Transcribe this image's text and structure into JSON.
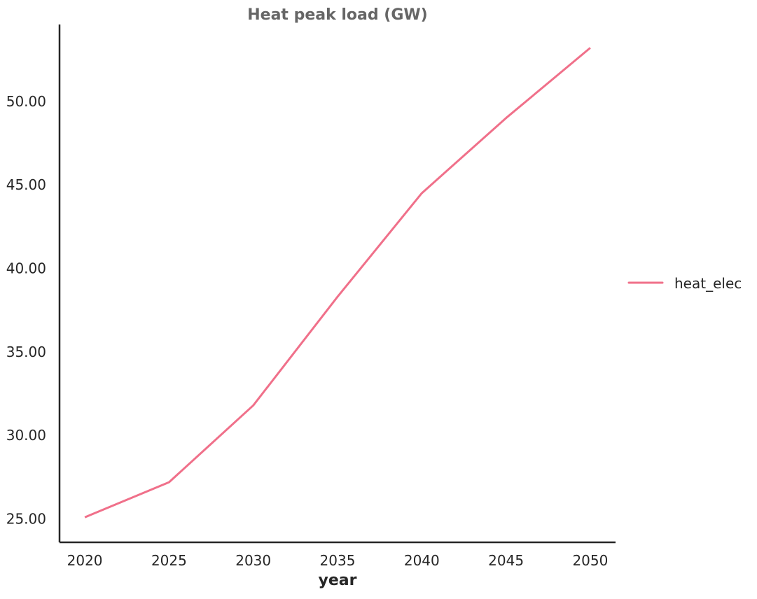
{
  "chart_data": {
    "type": "line",
    "title": "Heat peak load (GW)",
    "xlabel": "year",
    "ylabel": "",
    "x": [
      2020,
      2025,
      2030,
      2035,
      2040,
      2045,
      2050
    ],
    "xticks": [
      "2020",
      "2025",
      "2030",
      "2035",
      "2040",
      "2045",
      "2050"
    ],
    "yticks": [
      "25.00",
      "30.00",
      "35.00",
      "40.00",
      "45.00",
      "50.00"
    ],
    "ytick_values": [
      25,
      30,
      35,
      40,
      45,
      50
    ],
    "xlim": [
      2018.5,
      2051.5
    ],
    "ylim": [
      23.6,
      54.6
    ],
    "series": [
      {
        "name": "heat_elec",
        "color": "#f0708a",
        "values": [
          25.1,
          27.2,
          31.8,
          38.3,
          44.5,
          49.0,
          53.2
        ]
      }
    ],
    "legend": {
      "position": "center-right",
      "entries": [
        "heat_elec"
      ]
    },
    "grid": false,
    "spines": [
      "left",
      "bottom"
    ]
  }
}
